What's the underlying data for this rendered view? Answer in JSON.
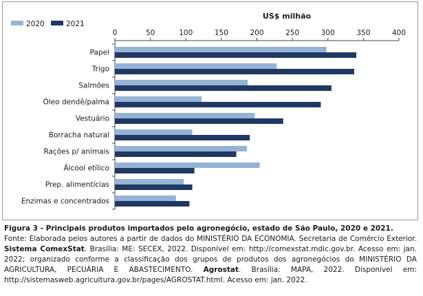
{
  "chart_data": {
    "type": "bar",
    "orientation": "horizontal",
    "unit_label": "US$ milhão",
    "categories": [
      "Papel",
      "Trigo",
      "Salmões",
      "Óleo dendê/palma",
      "Vestuário",
      "Borracha natural",
      "Rações p/ animais",
      "Álcool etílico",
      "Prep. alimentícias",
      "Enzimas e concentrados"
    ],
    "series": [
      {
        "name": "2020",
        "color": "#95b3d7",
        "values": [
          298,
          228,
          187,
          122,
          197,
          109,
          186,
          204,
          97,
          86
        ]
      },
      {
        "name": "2021",
        "color": "#1f3864",
        "values": [
          340,
          337,
          305,
          290,
          237,
          190,
          171,
          112,
          109,
          105
        ]
      }
    ],
    "xlim": [
      0,
      400
    ],
    "xticks": [
      "0",
      "50",
      "100",
      "150",
      "200",
      "250",
      "300",
      "350",
      "400"
    ],
    "axis_position": "top",
    "grid": false,
    "legend_position": "top-left"
  },
  "caption": {
    "title": "Figura 3 - Principais produtos importados pelo agronegócio, estado de São Paulo, 2020 e 2021.",
    "s1": "Fonte: Elaborada pelos autores a partir de dados do MINISTÉRIO DA ECONOMIA. Secretaria de Comércio Exterior. ",
    "b1": "Sistema ComexStat",
    "s2": ". Brasília: ME: SECEX, 2022. Disponível em: http://comexstat.mdic.gov.br. Acesso em: jan. 2022; organizado conforme a classificação dos grupos de produtos dos agronegócios do MINISTÉRIO DA AGRICULTURA, PECUÁRIA E ABASTECIMENTO. ",
    "b2": "Agrostat",
    "s3": ". Brasília: MAPA, 2022. Disponível em: http://sistemasweb.agricultura.gov.br/pages/AGROSTAT.html. Acesso em: jan. 2022."
  }
}
